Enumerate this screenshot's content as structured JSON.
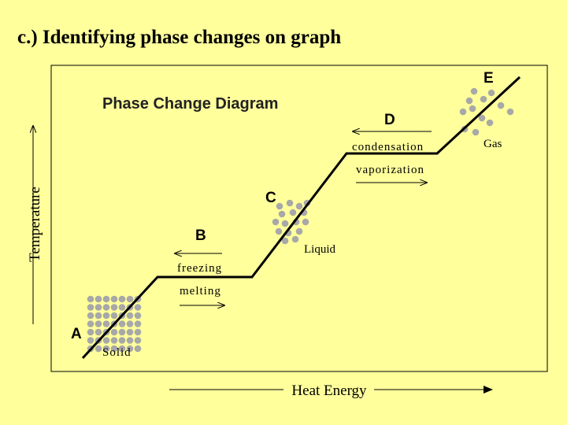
{
  "header": {
    "title": "c.) Identifying phase changes on graph"
  },
  "diagram": {
    "title": "Phase Change Diagram",
    "y_label": "Temperature",
    "x_label": "Heat Energy",
    "points": [
      "A",
      "B",
      "C",
      "D",
      "E"
    ],
    "transitions": {
      "freezing": "freezing",
      "melting": "melting",
      "condensation": "condensation",
      "vaporization": "vaporization"
    },
    "states": {
      "solid": "Solid",
      "liquid": "Liquid",
      "gas": "Gas"
    }
  }
}
